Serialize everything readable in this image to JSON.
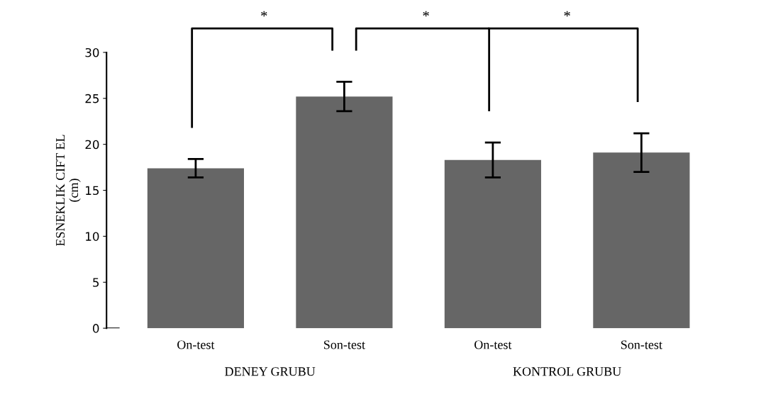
{
  "chart_data": {
    "type": "bar",
    "ylabel": "ESNEKLIK CIFT EL\n(cm)",
    "categories": [
      "On-test",
      "Son-test",
      "On-test",
      "Son-test"
    ],
    "values": [
      17.4,
      25.2,
      18.3,
      19.1
    ],
    "errors": [
      1.0,
      1.6,
      1.9,
      2.1
    ],
    "color": "#666666",
    "ylim": [
      0,
      30
    ],
    "yticks": [
      0,
      5,
      10,
      15,
      20,
      25,
      30
    ],
    "grid": false,
    "annotations": [
      "*",
      "*",
      "*",
      "DENEY GRUBU",
      "KONTROL GRUBU"
    ]
  }
}
